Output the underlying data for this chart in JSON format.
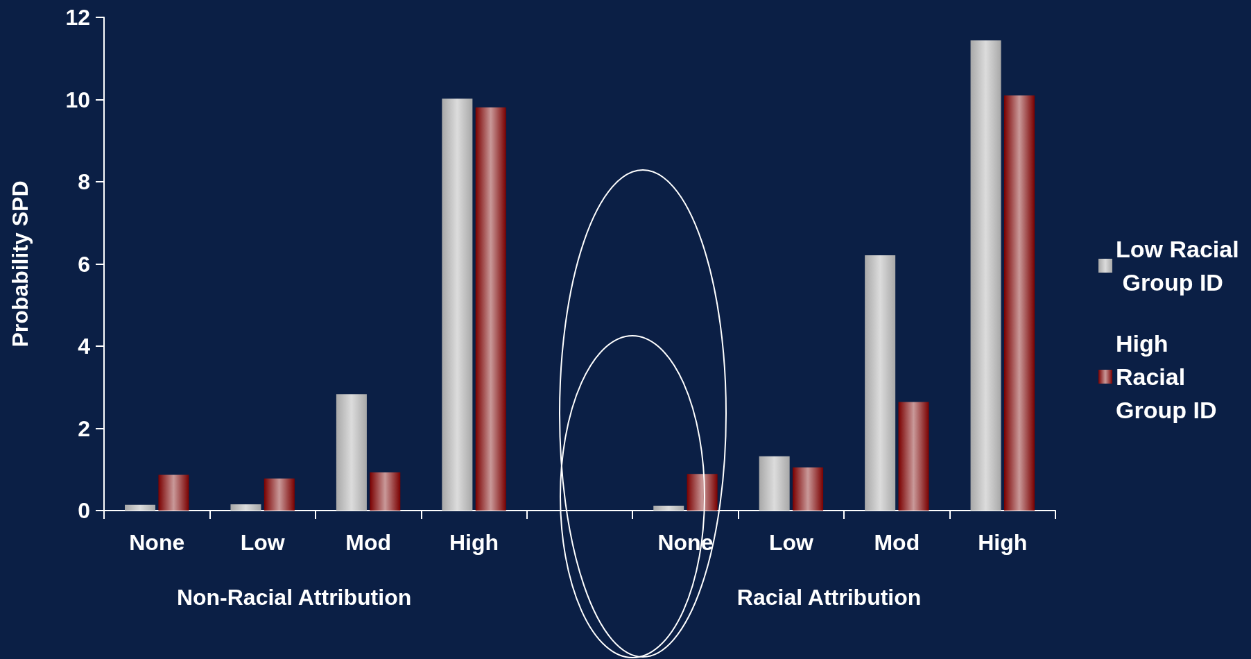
{
  "chart_data": {
    "type": "bar",
    "ylabel": "Probability SPD",
    "categories": [
      "None",
      "Low",
      "Mod",
      "High",
      null,
      "None",
      "Low",
      "Mod",
      "High"
    ],
    "series": [
      {
        "name": "Low Racial Group ID",
        "color": "#a8a8a8",
        "values": [
          0.14,
          0.15,
          2.83,
          10.02,
          null,
          0.12,
          1.32,
          6.21,
          11.44
        ]
      },
      {
        "name": "High Racial Group ID",
        "color": "#7a0000",
        "values": [
          0.87,
          0.78,
          0.93,
          9.81,
          null,
          0.89,
          1.05,
          2.64,
          10.1
        ]
      }
    ],
    "ylim": [
      0,
      12
    ],
    "yticks": [
      0,
      2,
      4,
      6,
      8,
      10,
      12
    ],
    "grid": false,
    "legend": "right",
    "annotations": [
      "Non-Racial Attribution",
      "Racial Attribution"
    ]
  }
}
